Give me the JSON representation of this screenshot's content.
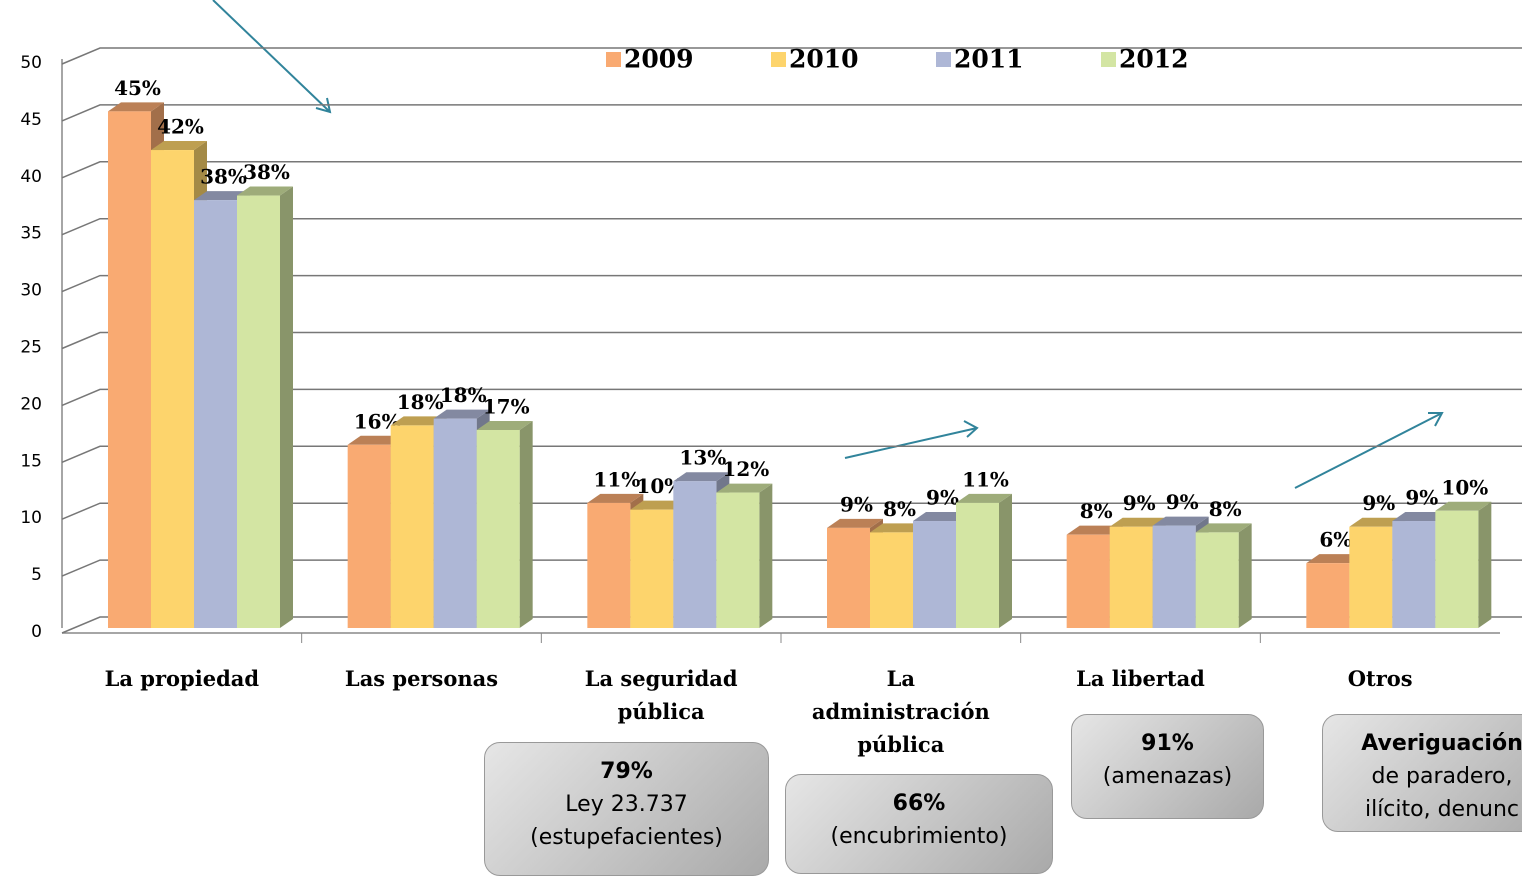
{
  "chart_data": {
    "type": "bar3d",
    "categories": [
      "La propiedad",
      "Las personas",
      "La seguridad pública",
      "La administración pública",
      "La libertad",
      "Otros"
    ],
    "series": [
      {
        "name": "2009",
        "color": "#f9aa72",
        "values": [
          45.4,
          16.1,
          11,
          8.8,
          8.2,
          5.7
        ],
        "value_labels": [
          "45%",
          "16%",
          "11%",
          "9%",
          "8%",
          "6%"
        ]
      },
      {
        "name": "2010",
        "color": "#fdd46c",
        "values": [
          42,
          17.8,
          10.4,
          8.4,
          8.9,
          8.9
        ],
        "value_labels": [
          "42%",
          "18%",
          "10%",
          "8%",
          "9%",
          "9%"
        ]
      },
      {
        "name": "2011",
        "color": "#aeb7d6",
        "values": [
          37.6,
          18.4,
          12.9,
          9.4,
          9,
          9.4
        ],
        "value_labels": [
          "38%",
          "18%",
          "13%",
          "9%",
          "9%",
          "9%"
        ]
      },
      {
        "name": "2012",
        "color": "#d3e5a3",
        "values": [
          38,
          17.4,
          11.9,
          11,
          8.4,
          10.3
        ],
        "value_labels": [
          "38%",
          "17%",
          "12%",
          "11%",
          "8%",
          "10%"
        ]
      }
    ],
    "ylim": [
      0,
      50
    ],
    "yticks": [
      0,
      5,
      10,
      15,
      20,
      25,
      30,
      35,
      40,
      45,
      50
    ],
    "grid": true,
    "legend": "top",
    "annotations": [
      {
        "lines": [
          "79%",
          "Ley 23.737",
          "(estupefacientes)"
        ]
      },
      {
        "lines": [
          "66%",
          "(encubrimiento)"
        ]
      },
      {
        "lines": [
          "91%",
          "(amenazas)"
        ]
      },
      {
        "lines": [
          "Averiguación",
          "de paradero,",
          "ilícito, denunc"
        ]
      }
    ]
  }
}
